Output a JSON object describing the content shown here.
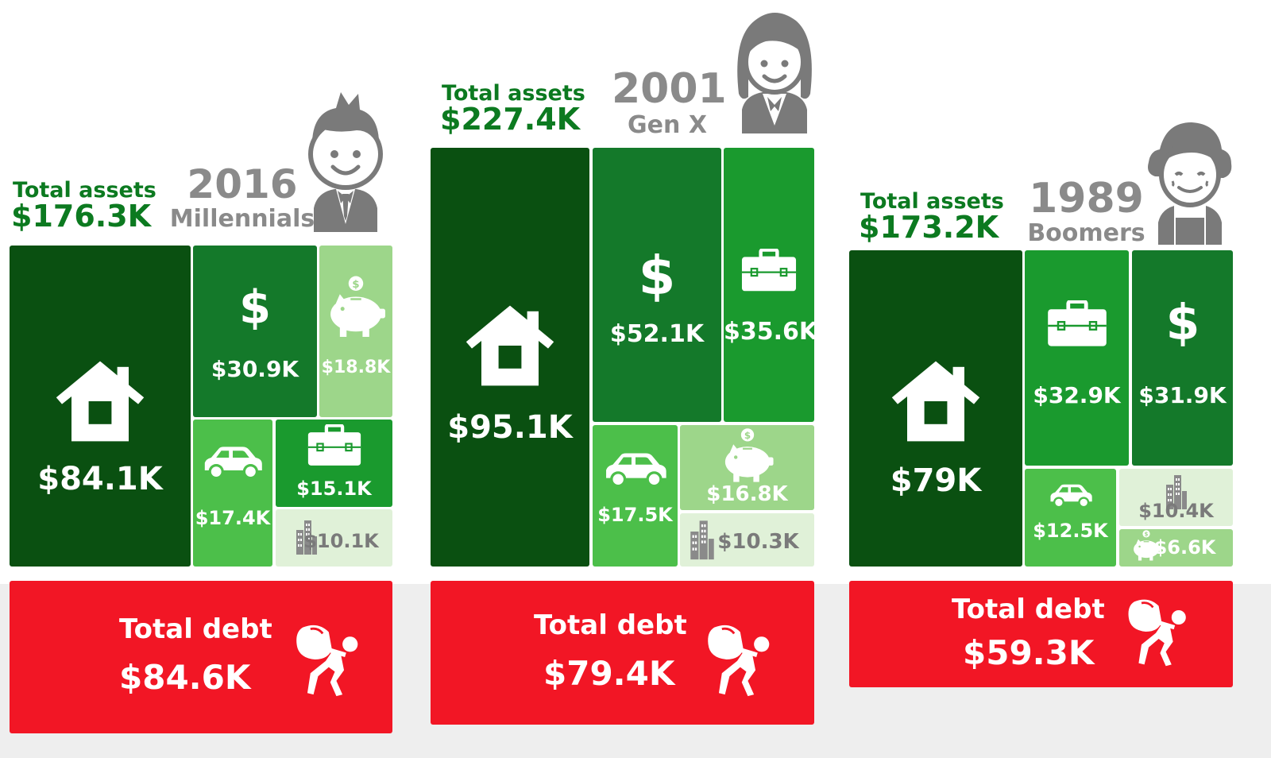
{
  "colors": {
    "house": "#0a5011",
    "dark": "#14792a",
    "mid": "#1a9a2e",
    "light": "#4cbf4a",
    "pale": "#9dd68a",
    "faint": "#e0f1d8",
    "debt": "#f21625",
    "gray": "#8a8a8a",
    "assetLabel": "#0c7a20"
  },
  "chart_data": [
    {
      "type": "treemap",
      "year": "2016",
      "generation": "Millennials",
      "total_assets_label": "Total assets",
      "total_assets": "$176.3K",
      "total_debt_label": "Total debt",
      "total_debt": "$84.6K",
      "assets": [
        {
          "icon": "house-icon",
          "value": 84.1,
          "label": "$84.1K",
          "color": "house"
        },
        {
          "icon": "dollar-icon",
          "value": 30.9,
          "label": "$30.9K",
          "color": "dark"
        },
        {
          "icon": "piggy-bank-icon",
          "value": 18.8,
          "label": "$18.8K",
          "color": "pale"
        },
        {
          "icon": "car-icon",
          "value": 17.4,
          "label": "$17.4K",
          "color": "light"
        },
        {
          "icon": "briefcase-icon",
          "value": 15.1,
          "label": "$15.1K",
          "color": "mid"
        },
        {
          "icon": "building-icon",
          "value": 10.1,
          "label": "$10.1K",
          "color": "faint"
        }
      ]
    },
    {
      "type": "treemap",
      "year": "2001",
      "generation": "Gen X",
      "total_assets_label": "Total assets",
      "total_assets": "$227.4K",
      "total_debt_label": "Total debt",
      "total_debt": "$79.4K",
      "assets": [
        {
          "icon": "house-icon",
          "value": 95.1,
          "label": "$95.1K",
          "color": "house"
        },
        {
          "icon": "dollar-icon",
          "value": 52.1,
          "label": "$52.1K",
          "color": "dark"
        },
        {
          "icon": "briefcase-icon",
          "value": 35.6,
          "label": "$35.6K",
          "color": "mid"
        },
        {
          "icon": "car-icon",
          "value": 17.5,
          "label": "$17.5K",
          "color": "light"
        },
        {
          "icon": "piggy-bank-icon",
          "value": 16.8,
          "label": "$16.8K",
          "color": "pale"
        },
        {
          "icon": "building-icon",
          "value": 10.3,
          "label": "$10.3K",
          "color": "faint"
        }
      ]
    },
    {
      "type": "treemap",
      "year": "1989",
      "generation": "Boomers",
      "total_assets_label": "Total assets",
      "total_assets": "$173.2K",
      "total_debt_label": "Total debt",
      "total_debt": "$59.3K",
      "assets": [
        {
          "icon": "house-icon",
          "value": 79,
          "label": "$79K",
          "color": "house"
        },
        {
          "icon": "briefcase-icon",
          "value": 32.9,
          "label": "$32.9K",
          "color": "mid"
        },
        {
          "icon": "dollar-icon",
          "value": 31.9,
          "label": "$31.9K",
          "color": "dark"
        },
        {
          "icon": "car-icon",
          "value": 12.5,
          "label": "$12.5K",
          "color": "light"
        },
        {
          "icon": "building-icon",
          "value": 10.4,
          "label": "$10.4K",
          "color": "faint"
        },
        {
          "icon": "piggy-bank-icon",
          "value": 6.6,
          "label": "$6.6K",
          "color": "pale"
        }
      ]
    }
  ]
}
